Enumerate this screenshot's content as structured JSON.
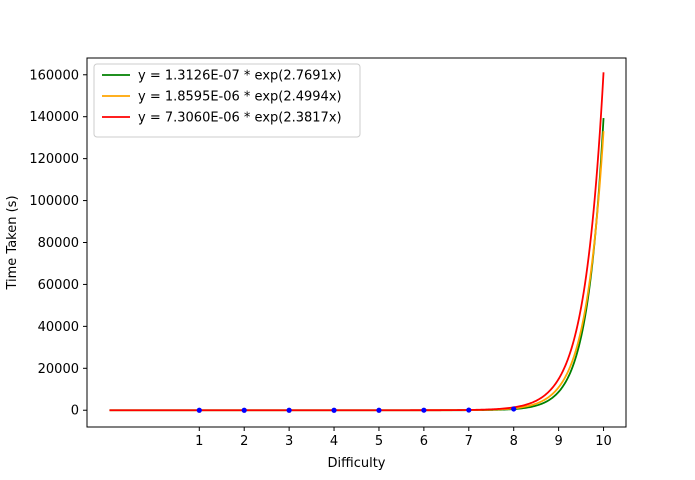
{
  "chart_data": {
    "type": "line",
    "title": "",
    "xlabel": "Difficulty",
    "ylabel": "Time Taken (s)",
    "xlim": [
      -1.5,
      10.5
    ],
    "ylim": [
      -8000,
      168000
    ],
    "x_ticks": [
      1,
      2,
      3,
      4,
      5,
      6,
      7,
      8,
      9,
      10
    ],
    "y_ticks": [
      0,
      20000,
      40000,
      60000,
      80000,
      100000,
      120000,
      140000,
      160000
    ],
    "legend_position": "top-left",
    "grid": false,
    "x_range": [
      -1,
      10
    ],
    "series": [
      {
        "name": "y = 1.3126E-07 * exp(2.7691x)",
        "type": "line",
        "a": 1.3126e-07,
        "b": 2.7691,
        "color": "#008000"
      },
      {
        "name": "y = 1.8595E-06 * exp(2.4994x)",
        "type": "line",
        "a": 1.8595e-06,
        "b": 2.4994,
        "color": "#ffa500"
      },
      {
        "name": "y = 7.3060E-06 * exp(2.3817x)",
        "type": "line",
        "a": 7.306e-06,
        "b": 2.3817,
        "color": "#ff0000"
      }
    ],
    "points": {
      "type": "scatter",
      "color": "#0000ff",
      "x": [
        1,
        2,
        3,
        4,
        5,
        6,
        7,
        8
      ],
      "y": [
        0,
        0,
        0,
        0,
        0,
        10,
        80,
        600
      ]
    }
  }
}
